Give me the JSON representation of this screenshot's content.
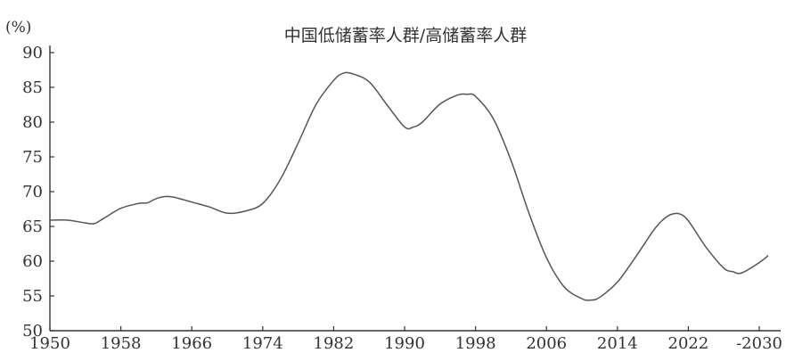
{
  "chart_data": {
    "type": "line",
    "title": "中国低储蓄率人群/高储蓄率人群",
    "unit_label": "(%)",
    "xlabel": "",
    "ylabel": "",
    "xlim": [
      1950,
      2031
    ],
    "ylim": [
      50,
      90
    ],
    "x_ticks": [
      1950,
      1958,
      1966,
      1974,
      1982,
      1990,
      1998,
      2006,
      2014,
      2022,
      2030
    ],
    "x_tick_labels": [
      "1950",
      "1958",
      "1966",
      "1974",
      "1982",
      "1990",
      "1998",
      "2006",
      "2014",
      "2022",
      "-2030"
    ],
    "y_ticks": [
      50,
      55,
      60,
      65,
      70,
      75,
      80,
      85,
      90
    ],
    "y_tick_labels": [
      "50",
      "55",
      "60",
      "65",
      "70",
      "75",
      "80",
      "85",
      "90"
    ],
    "grid": false,
    "legend": "none",
    "line_color": "#555555",
    "series": [
      {
        "x": [
          1950,
          1952,
          1954,
          1955,
          1956,
          1958,
          1960,
          1961,
          1962,
          1963,
          1964,
          1966,
          1968,
          1970,
          1972,
          1974,
          1976,
          1978,
          1980,
          1982,
          1983,
          1984,
          1986,
          1988,
          1990,
          1991,
          1992,
          1994,
          1996,
          1997,
          1998,
          2000,
          2002,
          2004,
          2006,
          2008,
          2010,
          2011,
          2012,
          2014,
          2016,
          2018,
          2019,
          2020,
          2021,
          2022,
          2024,
          2026,
          2027,
          2028,
          2030,
          2031
        ],
        "values": [
          65.9,
          65.9,
          65.5,
          65.4,
          66.1,
          67.6,
          68.3,
          68.4,
          69.0,
          69.3,
          69.2,
          68.5,
          67.8,
          66.9,
          67.2,
          68.3,
          71.8,
          77.0,
          82.5,
          86.0,
          87.0,
          87.0,
          85.8,
          82.5,
          79.3,
          79.3,
          80.0,
          82.6,
          83.9,
          84.0,
          83.7,
          80.5,
          74.5,
          67.0,
          60.5,
          56.3,
          54.6,
          54.4,
          54.8,
          57.0,
          60.5,
          64.3,
          65.8,
          66.7,
          66.8,
          65.8,
          62.0,
          59.0,
          58.5,
          58.3,
          59.8,
          60.8
        ]
      }
    ]
  }
}
